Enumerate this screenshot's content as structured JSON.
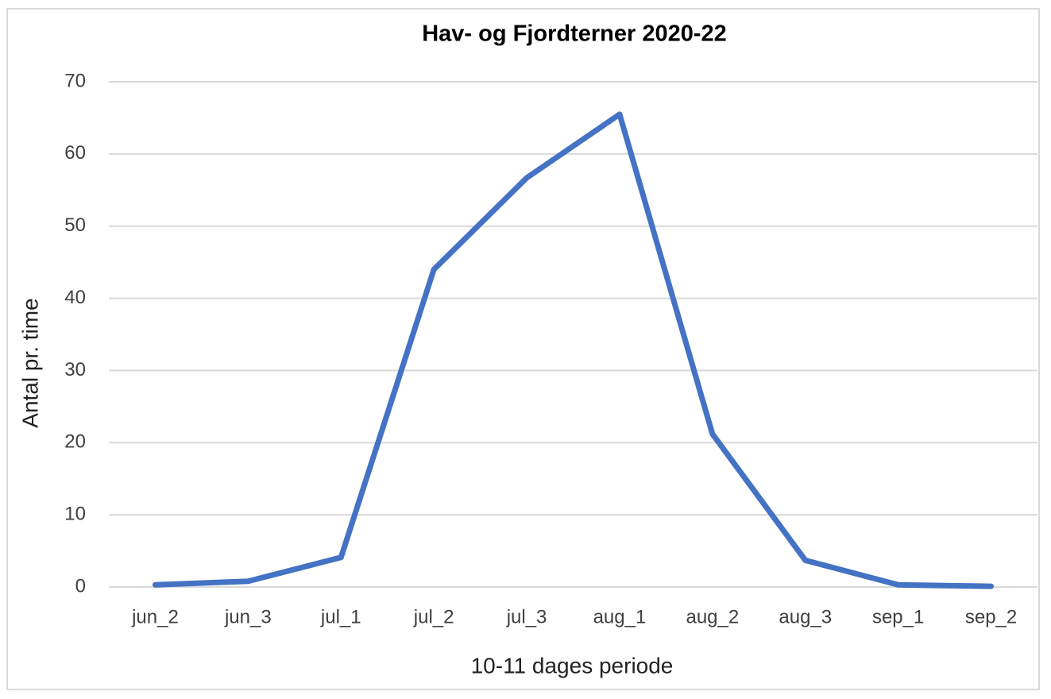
{
  "chart_data": {
    "type": "line",
    "title": "Hav- og Fjordterner 2020-22",
    "x_label": "10-11 dages periode",
    "y_label": "Antal pr. time",
    "categories": [
      "jun_2",
      "jun_3",
      "jul_1",
      "jul_2",
      "jul_3",
      "aug_1",
      "aug_2",
      "aug_3",
      "sep_1",
      "sep_2"
    ],
    "series": [
      {
        "name": "Hav- og Fjordterner",
        "color": "#4472c4",
        "values": [
          0.3,
          0.8,
          4.1,
          44,
          56.7,
          65.5,
          21.2,
          3.7,
          0.3,
          0.1
        ]
      }
    ],
    "ylim": [
      0,
      70
    ],
    "yticks": [
      0,
      10,
      20,
      30,
      40,
      50,
      60,
      70
    ],
    "grid": true,
    "legend": false
  }
}
